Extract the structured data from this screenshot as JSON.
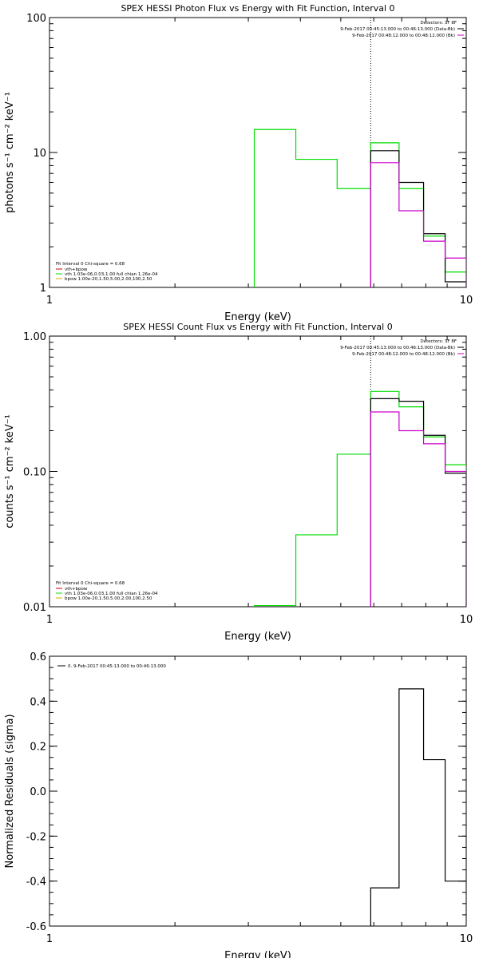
{
  "colors": {
    "background": "#ffffff",
    "axes": "#000000",
    "data": "#000000",
    "background_series": "#cc00cc",
    "model": "#00dd00",
    "vth_legend": "#cc0000",
    "bpow_legend": "#ddaa00"
  },
  "chart_data": [
    {
      "type": "line",
      "title": "SPEX HESSI Photon Flux vs Energy with Fit Function, Interval 0",
      "xlabel": "Energy (keV)",
      "ylabel": "photons s⁻¹ cm⁻² keV⁻¹",
      "xscale": "log",
      "yscale": "log",
      "xlim": [
        1,
        10
      ],
      "ylim": [
        1,
        100
      ],
      "xticks": [
        {
          "v": 1,
          "label": "1"
        },
        {
          "v": 10,
          "label": "10"
        }
      ],
      "yticks": [
        {
          "v": 1,
          "label": "1"
        },
        {
          "v": 10,
          "label": "10"
        },
        {
          "v": 100,
          "label": "100"
        }
      ],
      "vline_x": 5.9,
      "detectors_label": "Detectors: 3F 8F",
      "data_labels": [
        "9-Feb-2017 00:45:13.000 to 00:46:13.000 (Data-Bk)",
        "9-Feb-2017 00:48:12.000 to 00:48:12.000 (Bk)"
      ],
      "legend": {
        "header": "Fit Interval 0   Chi-square = 0.68",
        "items": [
          {
            "text": "vth+bpow",
            "color": "#cc0000"
          },
          {
            "text": "vth 1.03e-06,0.03,1.00  full chian 1.26e-04",
            "color": "#00dd00"
          },
          {
            "text": "bpow 1.00e-20,1.50,5.00,2.00,100,2.50",
            "color": "#ddaa00"
          }
        ]
      },
      "series": [
        {
          "color": "#00dd00",
          "edges": [
            3.1,
            3.9,
            4.9,
            5.9,
            6.9,
            7.9,
            8.9,
            10
          ],
          "values": [
            14.8,
            8.9,
            5.4,
            11.8,
            5.4,
            2.4,
            1.3
          ]
        },
        {
          "color": "#000000",
          "edges": [
            5.9,
            6.9,
            7.9,
            8.9,
            10
          ],
          "values": [
            10.3,
            6.0,
            2.5,
            1.1
          ]
        },
        {
          "color": "#cc00cc",
          "edges": [
            5.9,
            6.9,
            7.9,
            8.9,
            10
          ],
          "values": [
            8.4,
            3.7,
            2.2,
            1.65
          ]
        }
      ]
    },
    {
      "type": "line",
      "title": "SPEX HESSI Count Flux vs Energy with Fit Function, Interval 0",
      "xlabel": "Energy (keV)",
      "ylabel": "counts s⁻¹ cm⁻² keV⁻¹",
      "xscale": "log",
      "yscale": "log",
      "xlim": [
        1,
        10
      ],
      "ylim": [
        0.01,
        1
      ],
      "xticks": [
        {
          "v": 1,
          "label": "1"
        },
        {
          "v": 10,
          "label": "10"
        }
      ],
      "yticks": [
        {
          "v": 0.01,
          "label": "0.01"
        },
        {
          "v": 0.1,
          "label": "0.10"
        },
        {
          "v": 1,
          "label": "1.00"
        }
      ],
      "vline_x": 5.9,
      "detectors_label": "Detectors: 3F 8F",
      "data_labels": [
        "9-Feb-2017 00:45:13.000 to 00:46:13.000 (Data-Bk)",
        "9-Feb-2017 00:48:12.000 to 00:48:12.000 (Bk)"
      ],
      "legend": {
        "header": "Fit Interval 0   Chi-square = 0.68",
        "items": [
          {
            "text": "vth+bpow",
            "color": "#cc0000"
          },
          {
            "text": "vth 1.03e-06,0.03,1.00  full chian 1.26e-04",
            "color": "#00dd00"
          },
          {
            "text": "bpow 1.00e-20,1.50,5.00,2.00,100,2.50",
            "color": "#ddaa00"
          }
        ]
      },
      "series": [
        {
          "color": "#00dd00",
          "edges": [
            3.1,
            3.9,
            4.9,
            5.9,
            6.9,
            7.9,
            8.9,
            10
          ],
          "values": [
            0.0102,
            0.034,
            0.134,
            0.39,
            0.3,
            0.18,
            0.112
          ]
        },
        {
          "color": "#000000",
          "edges": [
            5.9,
            6.9,
            7.9,
            8.9,
            10
          ],
          "values": [
            0.345,
            0.33,
            0.185,
            0.097
          ]
        },
        {
          "color": "#cc00cc",
          "edges": [
            5.9,
            6.9,
            7.9,
            8.9,
            10
          ],
          "values": [
            0.275,
            0.2,
            0.16,
            0.1
          ]
        }
      ]
    },
    {
      "type": "line",
      "title": "",
      "xlabel": "Energy (keV)",
      "ylabel": "Normalized Residuals (sigma)",
      "xscale": "log",
      "yscale": "linear",
      "xlim": [
        1,
        10
      ],
      "ylim": [
        -0.6,
        0.6
      ],
      "xticks": [
        {
          "v": 1,
          "label": "1"
        },
        {
          "v": 10,
          "label": "10"
        }
      ],
      "yticks": [
        {
          "v": -0.6,
          "label": "-0.6"
        },
        {
          "v": -0.4,
          "label": "-0.4"
        },
        {
          "v": -0.2,
          "label": "-0.2"
        },
        {
          "v": 0.0,
          "label": "0.0"
        },
        {
          "v": 0.2,
          "label": "0.2"
        },
        {
          "v": 0.4,
          "label": "0.4"
        },
        {
          "v": 0.6,
          "label": "0.6"
        }
      ],
      "legend": {
        "header": "",
        "items": [
          {
            "text": "0. 9-Feb-2017 00:45:13.000 to 00:46:13.000",
            "color": "#000000"
          }
        ]
      },
      "series": [
        {
          "color": "#000000",
          "edges": [
            5.9,
            6.9,
            7.9,
            8.9,
            10
          ],
          "values": [
            -0.43,
            0.455,
            0.14,
            -0.4
          ]
        }
      ]
    }
  ]
}
